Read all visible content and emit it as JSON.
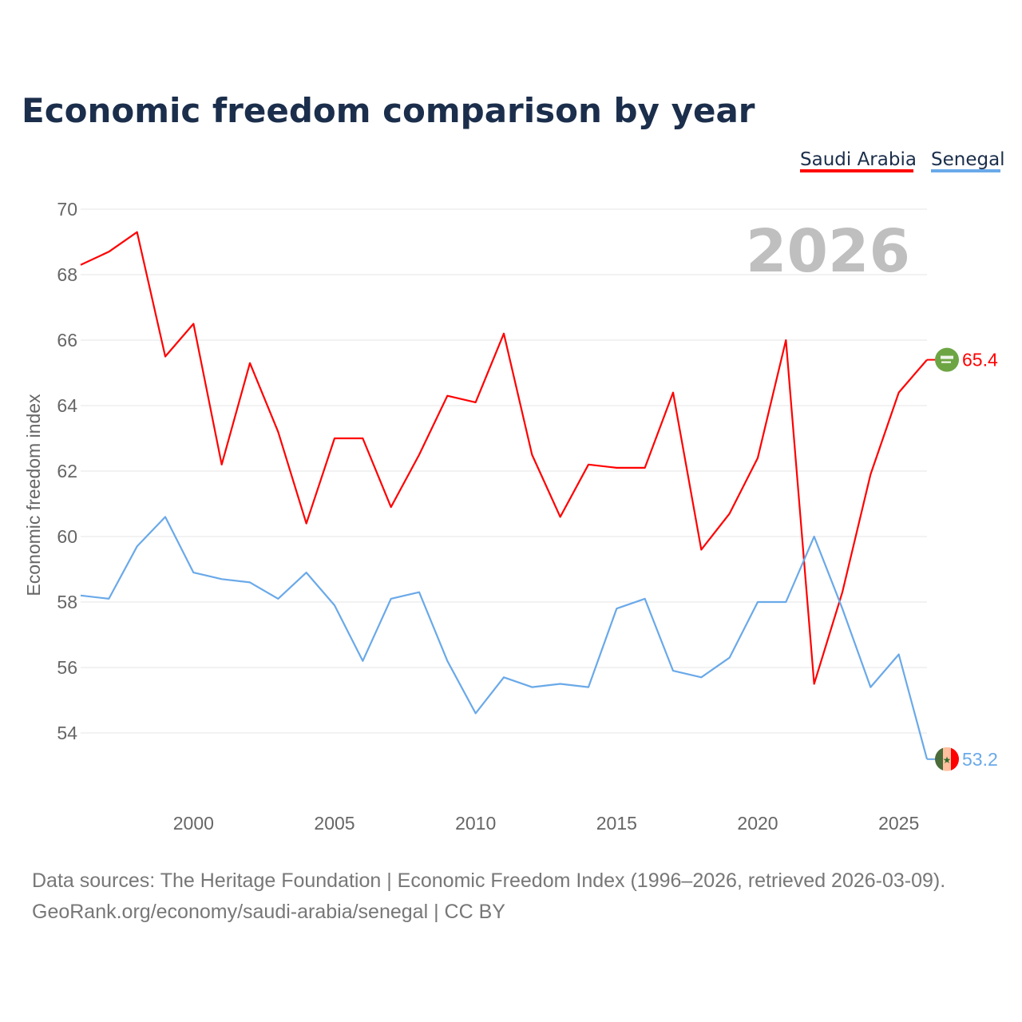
{
  "chart_data": {
    "type": "line",
    "title": "Economic freedom comparison by year",
    "ylabel": "Economic freedom index",
    "xlabel": "",
    "ylim": [
      52,
      70
    ],
    "xlim": [
      1996,
      2026
    ],
    "yticks": [
      54,
      56,
      58,
      60,
      62,
      64,
      66,
      68,
      70
    ],
    "xticks": [
      2000,
      2005,
      2010,
      2015,
      2020,
      2025
    ],
    "grid": true,
    "legend_position": "top-right",
    "watermark_year": "2026",
    "x": [
      1996,
      1997,
      1998,
      1999,
      2000,
      2001,
      2002,
      2003,
      2004,
      2005,
      2006,
      2007,
      2008,
      2009,
      2010,
      2011,
      2012,
      2013,
      2014,
      2015,
      2016,
      2017,
      2018,
      2019,
      2020,
      2021,
      2022,
      2023,
      2024,
      2025,
      2026
    ],
    "series": [
      {
        "name": "Saudi Arabia",
        "color": "#ff0000",
        "end_label": "65.4",
        "values": [
          68.3,
          68.7,
          69.3,
          65.5,
          66.5,
          62.2,
          65.3,
          63.2,
          60.4,
          63.0,
          63.0,
          60.9,
          62.5,
          64.3,
          64.1,
          66.2,
          62.5,
          60.6,
          62.2,
          62.1,
          62.1,
          64.4,
          59.6,
          60.7,
          62.4,
          66.0,
          55.5,
          58.3,
          61.9,
          64.4,
          65.4
        ]
      },
      {
        "name": "Senegal",
        "color": "#6aa9e9",
        "end_label": "53.2",
        "values": [
          58.2,
          58.1,
          59.7,
          60.6,
          58.9,
          58.7,
          58.6,
          58.1,
          58.9,
          57.9,
          56.2,
          58.1,
          58.3,
          56.2,
          54.6,
          55.7,
          55.4,
          55.5,
          55.4,
          57.8,
          58.1,
          55.9,
          55.7,
          56.3,
          58.0,
          58.0,
          60.0,
          57.8,
          55.4,
          56.4,
          53.2
        ]
      }
    ]
  },
  "footer": {
    "line1": "Data sources: The Heritage Foundation | Economic Freedom Index (1996–2026, retrieved 2026-03-09).",
    "line2": "GeoRank.org/economy/saudi-arabia/senegal | CC BY"
  }
}
